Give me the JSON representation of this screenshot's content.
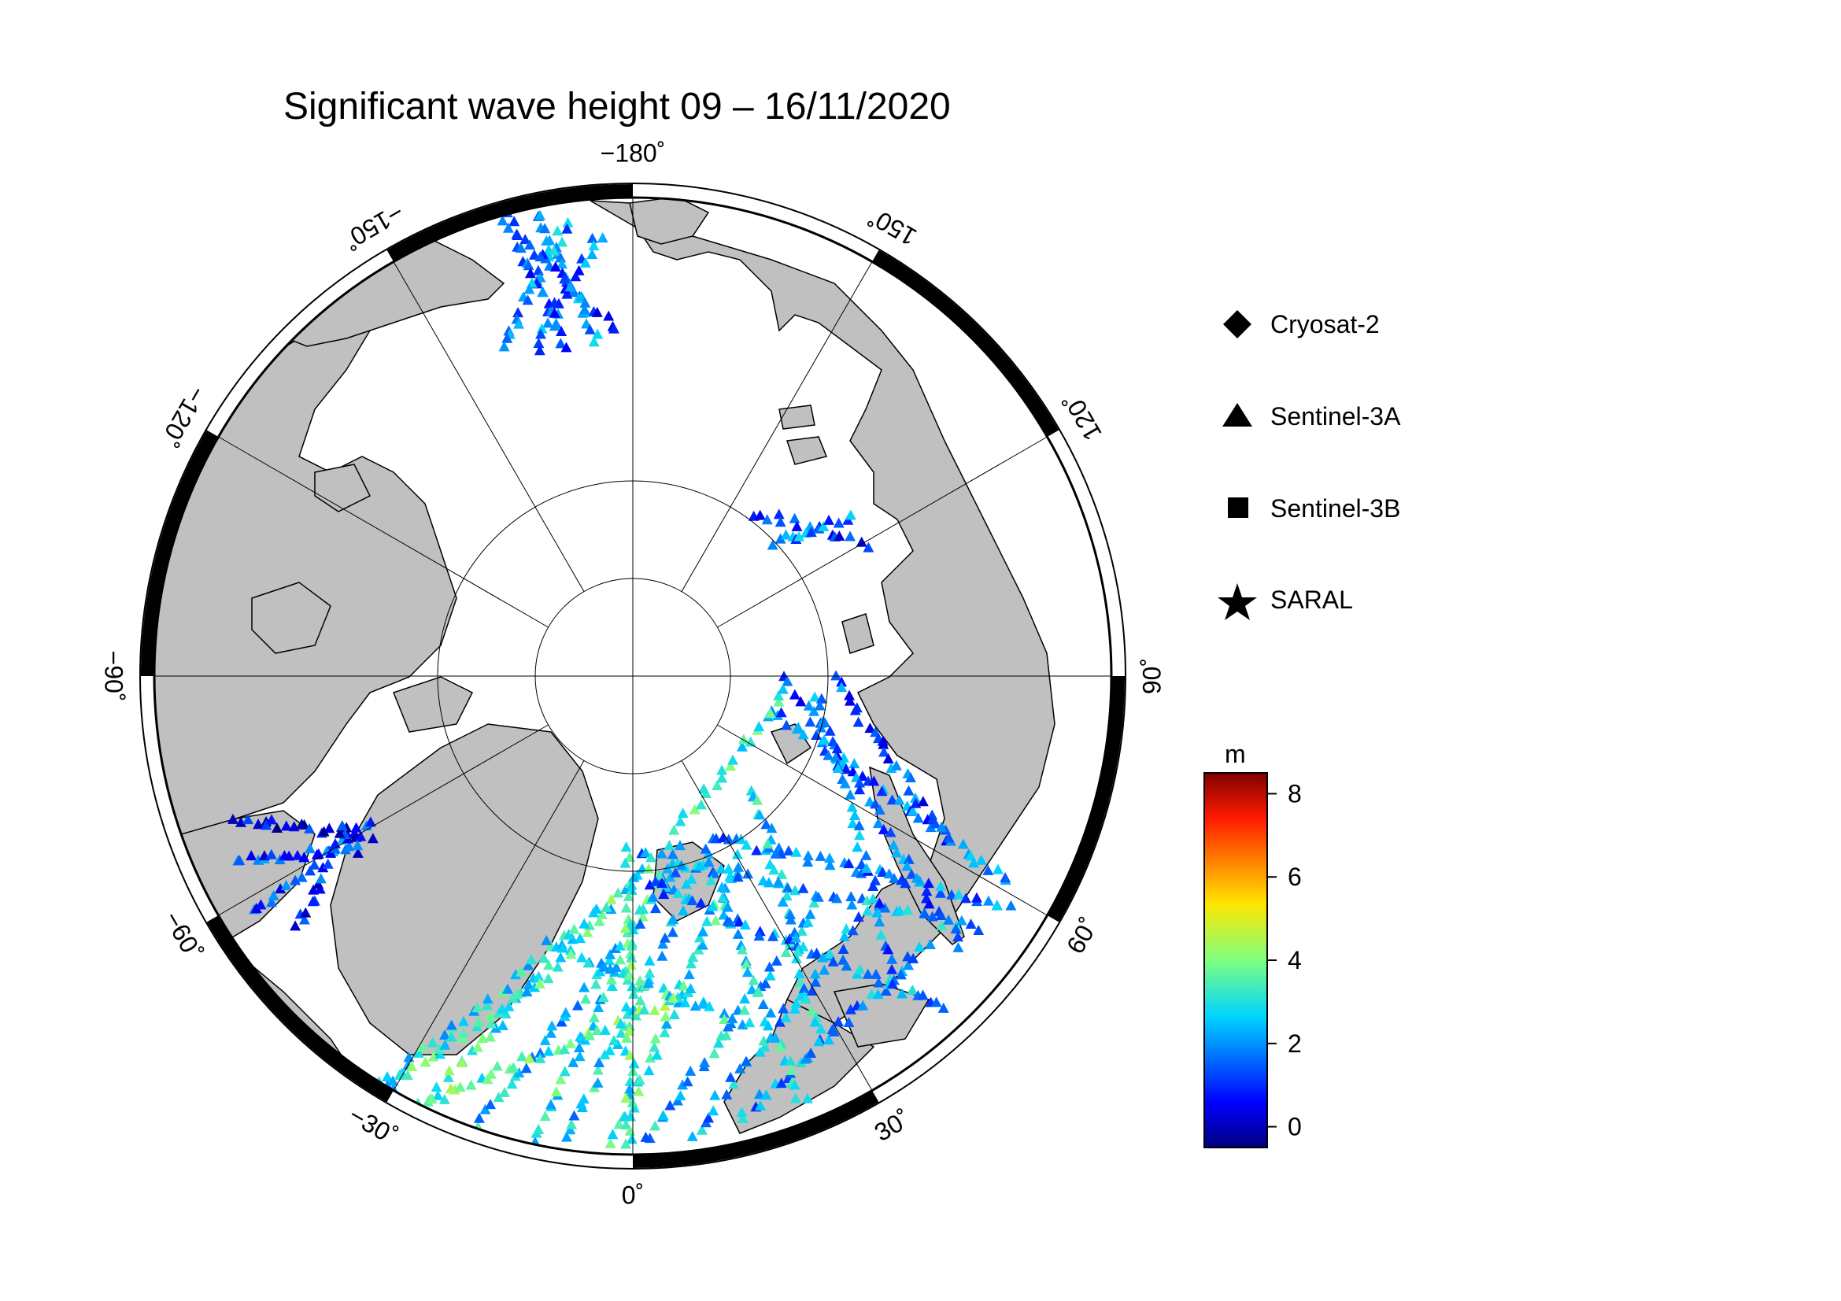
{
  "title": "Significant wave height 09 – 16/11/2020",
  "longitude_labels": [
    {
      "value": 0,
      "text": "0˚"
    },
    {
      "value": 30,
      "text": "30˚"
    },
    {
      "value": 60,
      "text": "60˚"
    },
    {
      "value": 90,
      "text": "90˚"
    },
    {
      "value": 120,
      "text": "120˚"
    },
    {
      "value": 150,
      "text": "150˚"
    },
    {
      "value": 180,
      "text": "−180˚"
    },
    {
      "value": -150,
      "text": "−150˚"
    },
    {
      "value": -120,
      "text": "−120˚"
    },
    {
      "value": -90,
      "text": "−90˚"
    },
    {
      "value": -60,
      "text": "−60˚"
    },
    {
      "value": -30,
      "text": "−30˚"
    }
  ],
  "legend": {
    "items": [
      {
        "symbol": "diamond",
        "label": "Cryosat-2"
      },
      {
        "symbol": "triangle",
        "label": "Sentinel-3A"
      },
      {
        "symbol": "square",
        "label": "Sentinel-3B"
      },
      {
        "symbol": "star",
        "label": "SARAL"
      }
    ]
  },
  "colorbar": {
    "unit": "m",
    "min": -0.5,
    "max": 8.5,
    "ticks": [
      {
        "value": 0,
        "text": "0"
      },
      {
        "value": 2,
        "text": "2"
      },
      {
        "value": 4,
        "text": "4"
      },
      {
        "value": 6,
        "text": "6"
      },
      {
        "value": 8,
        "text": "8"
      }
    ]
  },
  "colors": {
    "land": "#c0c0c0",
    "ocean_ice": "#ffffff",
    "frame": "#000000"
  }
}
